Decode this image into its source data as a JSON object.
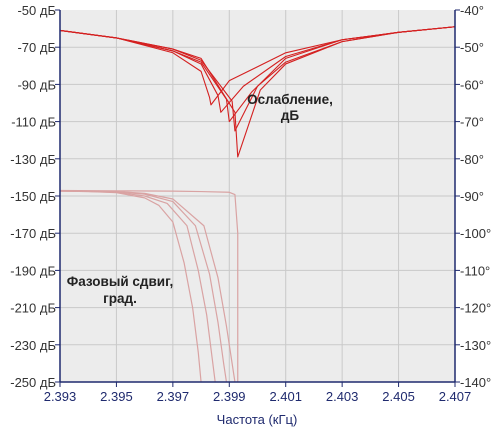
{
  "chart_data": {
    "type": "line",
    "xlabel": "Частота (кГц)",
    "xlim": [
      2.393,
      2.407
    ],
    "x_ticks": [
      "2.393",
      "2.395",
      "2.397",
      "2.399",
      "2.401",
      "2.403",
      "2.405",
      "2.407"
    ],
    "y_left": {
      "lim": [
        -250,
        -50
      ],
      "ticks": [
        "-50 дБ",
        "-70 дБ",
        "-90 дБ",
        "-110 дБ",
        "-130 дБ",
        "-150 дБ",
        "-170 дБ",
        "-190 дБ",
        "-210 дБ",
        "-230 дБ",
        "-250 дБ"
      ]
    },
    "y_right": {
      "lim": [
        -140,
        -40
      ],
      "ticks": [
        "-40°",
        "-50°",
        "-60°",
        "-70°",
        "-80°",
        "-90°",
        "-100°",
        "-110°",
        "-120°",
        "-130°",
        "-140°"
      ]
    },
    "annotations": {
      "attenuation": [
        "Ослабление,",
        "дБ"
      ],
      "phase": [
        "Фазовый сдвиг,",
        "град."
      ]
    },
    "grid": true,
    "colors": {
      "attenuation": "#d42020",
      "phase": "#d9a3a3",
      "axis": "#1f2a6e",
      "grid": "#c9c9c9",
      "background": "#ececec"
    },
    "series": [
      {
        "group": "attenuation",
        "notch_x": 2.39835,
        "notch_db": -101,
        "x": [
          2.393,
          2.395,
          2.397,
          2.398,
          2.3983,
          2.39835,
          2.399,
          2.401,
          2.403,
          2.405,
          2.407
        ],
        "y": [
          -61,
          -65,
          -73,
          -83,
          -97,
          -101,
          -88,
          -73,
          -66,
          -62,
          -59
        ]
      },
      {
        "group": "attenuation",
        "notch_x": 2.3987,
        "notch_db": -105,
        "x": [
          2.393,
          2.395,
          2.397,
          2.398,
          2.3986,
          2.3987,
          2.3995,
          2.401,
          2.403,
          2.405,
          2.407
        ],
        "y": [
          -61,
          -65,
          -72,
          -79,
          -96,
          -105,
          -91,
          -75,
          -66,
          -62,
          -59
        ]
      },
      {
        "group": "attenuation",
        "notch_x": 2.399,
        "notch_db": -110,
        "x": [
          2.393,
          2.395,
          2.397,
          2.398,
          2.3989,
          2.399,
          2.3998,
          2.401,
          2.403,
          2.405,
          2.407
        ],
        "y": [
          -61,
          -65,
          -72,
          -78,
          -98,
          -110,
          -94,
          -76,
          -66,
          -62,
          -59
        ]
      },
      {
        "group": "attenuation",
        "notch_x": 2.3992,
        "notch_db": -115,
        "x": [
          2.393,
          2.395,
          2.397,
          2.398,
          2.3991,
          2.3992,
          2.4,
          2.401,
          2.403,
          2.405,
          2.407
        ],
        "y": [
          -61,
          -65,
          -71,
          -77,
          -99,
          -115,
          -91,
          -78,
          -67,
          -62,
          -59
        ]
      },
      {
        "group": "attenuation",
        "notch_x": 2.3993,
        "notch_db": -129,
        "x": [
          2.393,
          2.395,
          2.397,
          2.398,
          2.3992,
          2.3993,
          2.4001,
          2.401,
          2.403,
          2.405,
          2.407
        ],
        "y": [
          -61,
          -65,
          -71,
          -76,
          -105,
          -129,
          -93,
          -79,
          -67,
          -62,
          -59
        ]
      },
      {
        "group": "phase",
        "x": [
          2.393,
          2.394,
          2.395,
          2.396,
          2.3965,
          2.397,
          2.3974,
          2.3977,
          2.3979,
          2.398
        ],
        "y": [
          -88.7,
          -88.8,
          -89.1,
          -90.5,
          -92.5,
          -97,
          -108,
          -120,
          -132,
          -140
        ]
      },
      {
        "group": "phase",
        "x": [
          2.393,
          2.394,
          2.395,
          2.396,
          2.3968,
          2.3975,
          2.3979,
          2.3982,
          2.3984,
          2.3985
        ],
        "y": [
          -88.7,
          -88.8,
          -89,
          -90,
          -92,
          -98,
          -110,
          -122,
          -134,
          -140
        ]
      },
      {
        "group": "phase",
        "x": [
          2.393,
          2.394,
          2.395,
          2.396,
          2.397,
          2.3978,
          2.3983,
          2.3986,
          2.3988,
          2.3989
        ],
        "y": [
          -88.6,
          -88.7,
          -88.9,
          -89.5,
          -91.5,
          -98,
          -111,
          -124,
          -135,
          -140
        ]
      },
      {
        "group": "phase",
        "x": [
          2.393,
          2.394,
          2.395,
          2.396,
          2.397,
          2.3981,
          2.3986,
          2.3989,
          2.3991,
          2.3992
        ],
        "y": [
          -88.6,
          -88.7,
          -88.8,
          -89.3,
          -90.8,
          -98,
          -112,
          -125,
          -135,
          -140
        ]
      },
      {
        "group": "phase",
        "x": [
          2.393,
          2.395,
          2.397,
          2.398,
          2.399,
          2.3992,
          2.3993,
          2.3993,
          2.3993
        ],
        "y": [
          -88.5,
          -88.6,
          -88.7,
          -88.8,
          -89,
          -89.6,
          -100,
          -125,
          -140
        ]
      }
    ]
  }
}
